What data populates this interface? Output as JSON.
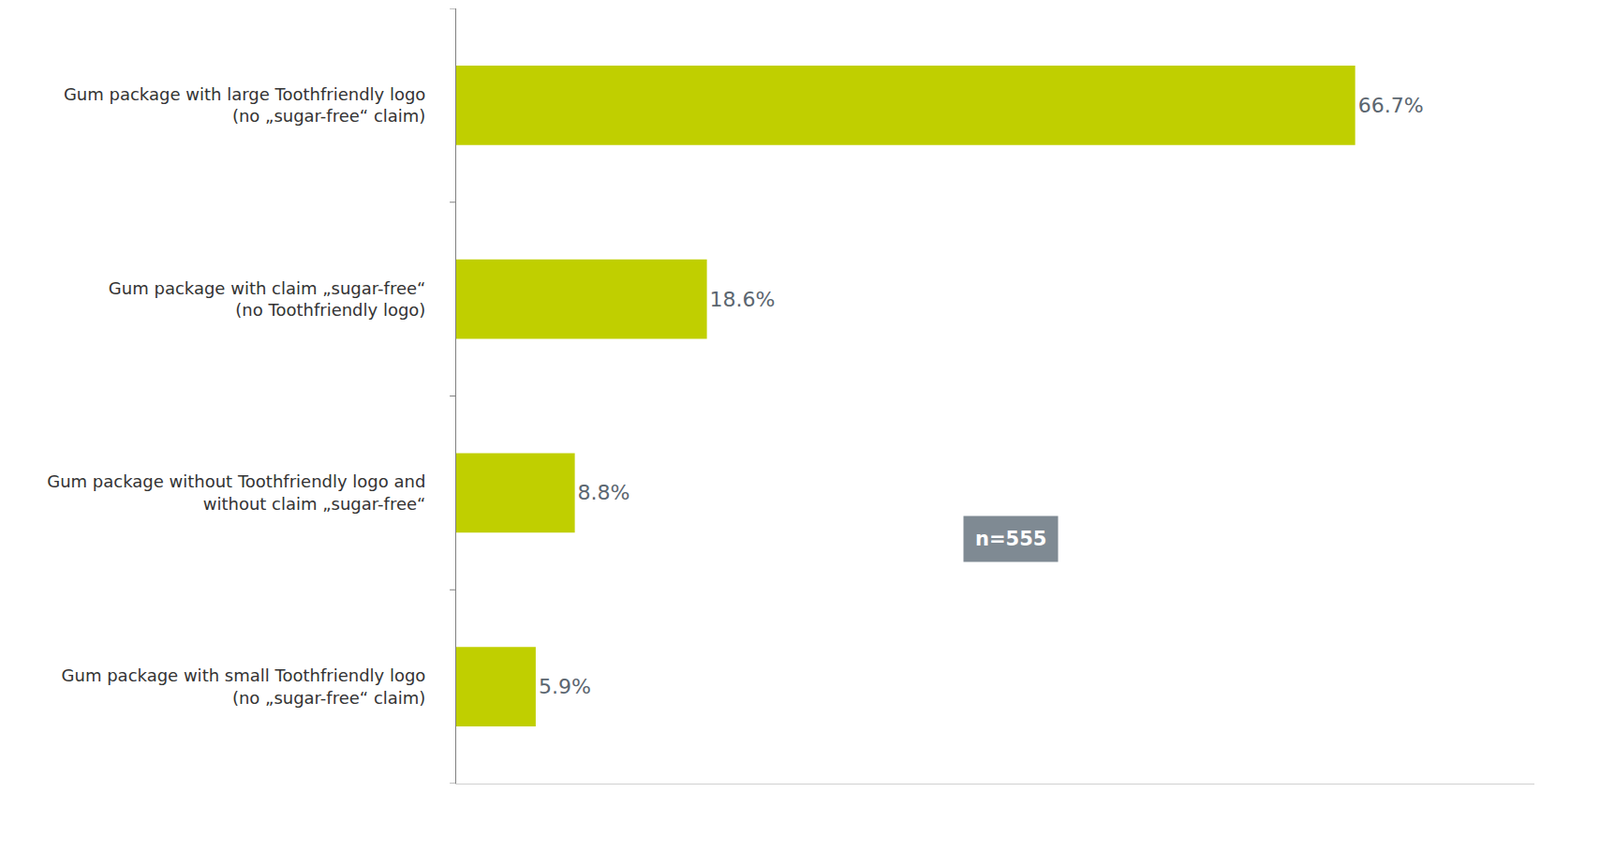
{
  "chart_data": {
    "type": "bar",
    "orientation": "horizontal",
    "categories": [
      "Gum package with large Toothfriendly logo\n(no „sugar-free“ claim)",
      "Gum package with claim „sugar-free“\n(no Toothfriendly logo)",
      "Gum package without Toothfriendly logo and\nwithout claim „sugar-free“",
      "Gum package with small Toothfriendly logo\n(no „sugar-free“ claim)"
    ],
    "values": [
      66.7,
      18.6,
      8.8,
      5.9
    ],
    "value_labels": [
      "66.7%",
      "18.6%",
      "8.8%",
      "5.9%"
    ],
    "data_labels": true,
    "color": "#c0cf00",
    "xlim": [
      0,
      80
    ],
    "grid": false,
    "tick_labels": "y",
    "annotations": [
      "n=555"
    ]
  }
}
